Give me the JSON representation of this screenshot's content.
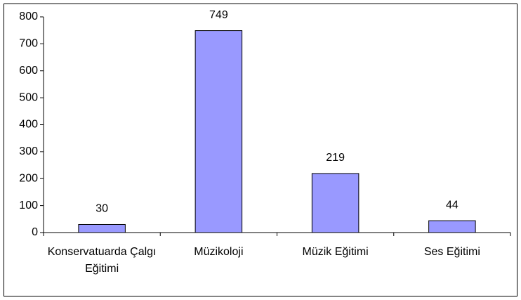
{
  "chart_data": {
    "type": "bar",
    "categories": [
      "Konservatuarda Çalgı Eğitimi",
      "Müzikoloji",
      "Müzik Eğitimi",
      "Ses Eğitimi"
    ],
    "values": [
      30,
      749,
      219,
      44
    ],
    "color": "#9999ff",
    "ylim": [
      0,
      800
    ],
    "yticks": [
      0,
      100,
      200,
      300,
      400,
      500,
      600,
      700,
      800
    ],
    "grid": false
  }
}
